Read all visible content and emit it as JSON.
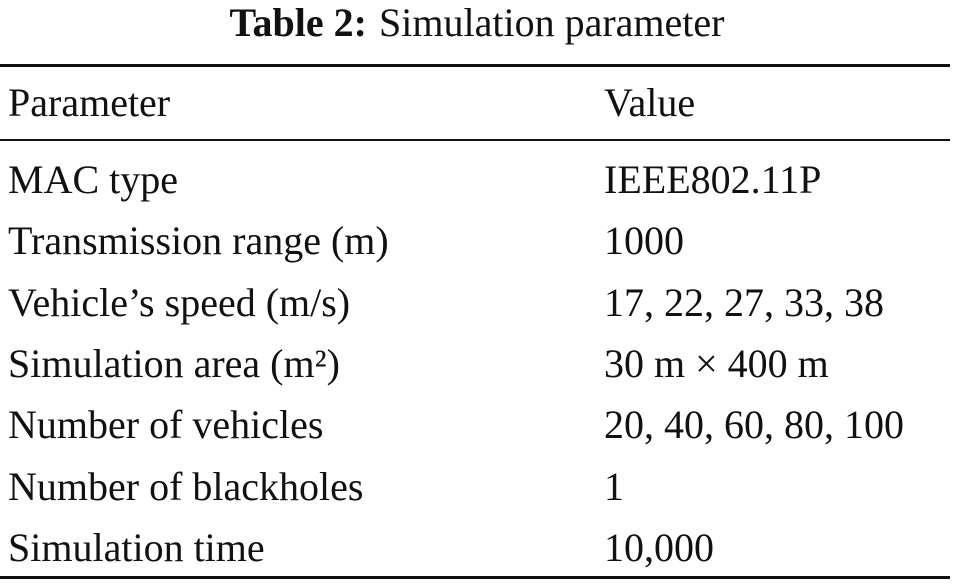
{
  "caption": {
    "label": "Table 2:",
    "title": "Simulation parameter"
  },
  "table": {
    "header": [
      "Parameter",
      "Value"
    ],
    "rows": [
      [
        "MAC type",
        "IEEE802.11P"
      ],
      [
        "Transmission range (m)",
        "1000"
      ],
      [
        "Vehicle’s speed (m/s)",
        "17, 22, 27, 33, 38"
      ],
      [
        "Simulation area (m²)",
        "30 m × 400 m"
      ],
      [
        "Number of vehicles",
        "20, 40, 60, 80, 100"
      ],
      [
        "Number of blackholes",
        "1"
      ],
      [
        "Simulation time",
        "10,000"
      ]
    ]
  }
}
